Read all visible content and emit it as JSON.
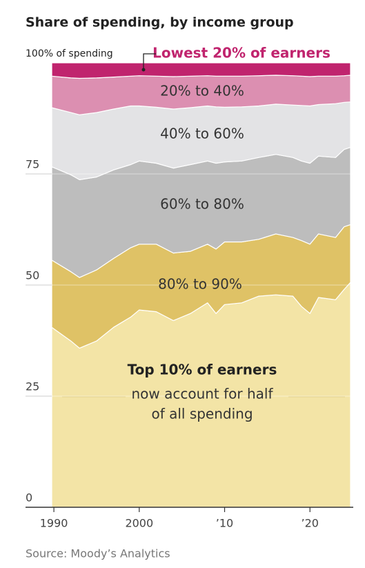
{
  "chart_data": {
    "type": "area",
    "title": "Share of spending, by income group",
    "source": "Source: Moody’s Analytics",
    "stacked": true,
    "x": [
      1989.75,
      1992,
      1993,
      1995,
      1997,
      1999,
      2000,
      2002,
      2004,
      2006,
      2008,
      2009,
      2010,
      2012,
      2014,
      2016,
      2018,
      2019,
      2020,
      2021,
      2023,
      2024,
      2024.75
    ],
    "xlim": [
      1989.75,
      2024.75
    ],
    "xticks": [
      1990,
      2000,
      {
        "value": 2010,
        "label": "’10"
      },
      {
        "value": 2020,
        "label": "’20"
      }
    ],
    "ylim": [
      0,
      100
    ],
    "yticks": [
      0,
      25,
      50,
      75,
      {
        "value": 100,
        "label": "100% of spending"
      }
    ],
    "grid": true,
    "series": [
      {
        "name": "Top 10% of earners",
        "color": "#f3e4a6",
        "values": [
          40.5,
          37.4,
          35.8,
          37.4,
          40.5,
          42.8,
          44.4,
          44,
          42,
          43.6,
          46,
          43.6,
          45.6,
          46,
          47.5,
          47.8,
          47.5,
          45.2,
          43.6,
          47.2,
          46.7,
          49,
          50.6
        ]
      },
      {
        "name": "80% to 90%",
        "color": "#dfc266",
        "values": [
          15.1,
          15.6,
          15.9,
          16,
          15.5,
          15.6,
          14.8,
          15.2,
          15.2,
          14,
          13.2,
          14.5,
          14.1,
          13.7,
          12.8,
          13.7,
          13.2,
          14.8,
          15.6,
          14.3,
          14,
          14.1,
          13
        ]
      },
      {
        "name": "60% to 80%",
        "color": "#bdbdbd",
        "values": [
          21,
          21.8,
          22,
          20.9,
          19.9,
          18.7,
          18.7,
          18.2,
          19.1,
          19.5,
          18.7,
          19.3,
          18,
          18.2,
          18.4,
          17.9,
          18,
          17.9,
          18.2,
          17.5,
          18,
          17.4,
          17.4
        ]
      },
      {
        "name": "40% to 60%",
        "color": "#e3e3e5",
        "values": [
          13.3,
          14,
          14.6,
          14.5,
          13.7,
          13.2,
          12.4,
          12.6,
          13.3,
          12.8,
          12.4,
          12.7,
          12.3,
          12.2,
          11.6,
          11.3,
          11.8,
          12.5,
          12.9,
          11.6,
          12.1,
          10.6,
          10.2
        ]
      },
      {
        "name": "20% to 40%",
        "color": "#dc8fb1",
        "values": [
          7.1,
          7.8,
          8.2,
          7.8,
          7.2,
          6.7,
          6.8,
          7,
          7.3,
          7.1,
          6.8,
          6.9,
          7,
          6.9,
          6.8,
          6.5,
          6.6,
          6.6,
          6.6,
          6.4,
          6.2,
          6,
          6
        ]
      },
      {
        "name": "Lowest 20% of earners",
        "color": "#c0246e",
        "values": [
          3,
          3.4,
          3.5,
          3.4,
          3.2,
          3,
          2.9,
          3,
          3.1,
          3,
          2.9,
          3,
          3,
          3,
          2.9,
          2.8,
          2.9,
          3,
          3.1,
          3,
          3,
          2.9,
          2.8
        ]
      }
    ],
    "annotation": [
      "now account for half",
      "of all spending"
    ]
  }
}
